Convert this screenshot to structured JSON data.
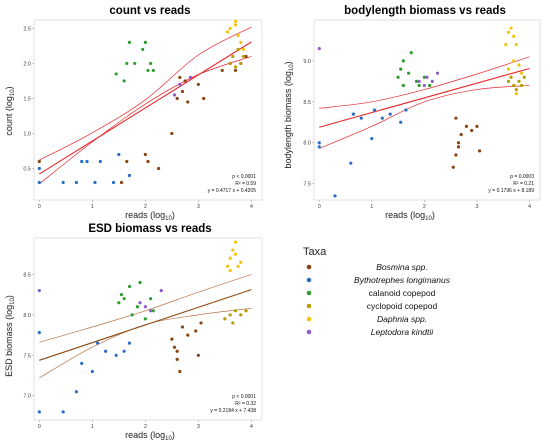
{
  "chart_data": [
    {
      "type": "scatter",
      "title": "count vs reads",
      "xlabel": "reads (log",
      "xlabel_sub": "10",
      "xlabel_end": ")",
      "ylabel": "count (log",
      "ylabel_sub": "10",
      "ylabel_end": ")",
      "xlim": [
        -0.1,
        4.2
      ],
      "ylim": [
        0.05,
        2.62
      ],
      "xticks": [
        0,
        1,
        2,
        3,
        4
      ],
      "yticks": [
        0.5,
        1.0,
        1.5,
        2.0,
        2.5
      ],
      "ytick_labels": [
        "0.5",
        "1.0",
        "1.5",
        "2.0",
        "2.5"
      ],
      "grid": false,
      "line_color": "#e8262b",
      "ci_color": "#e8262b",
      "fit": {
        "slope": 0.4717,
        "intercept": 0.4205
      },
      "ci_band": {
        "lower": [
          [
            0,
            0.28
          ],
          [
            1,
            0.88
          ],
          [
            2,
            1.42
          ],
          [
            3,
            1.84
          ],
          [
            4,
            2.1
          ]
        ],
        "upper": [
          [
            0,
            0.62
          ],
          [
            1,
            1.01
          ],
          [
            2,
            1.48
          ],
          [
            3,
            2.12
          ],
          [
            4,
            2.52
          ]
        ]
      },
      "stats": [
        "p < 0.0001",
        "R² = 0.59",
        "y = 0.4717 x + 0.4205"
      ],
      "series": [
        {
          "name": "Bosmina spp.",
          "points": [
            [
              0.0,
              0.6
            ],
            [
              1.55,
              0.3
            ],
            [
              1.65,
              0.6
            ],
            [
              2.0,
              0.7
            ],
            [
              2.05,
              0.6
            ],
            [
              2.25,
              0.5
            ],
            [
              2.5,
              1.0
            ],
            [
              2.6,
              1.5
            ],
            [
              2.65,
              1.8
            ],
            [
              2.7,
              1.6
            ],
            [
              2.75,
              1.75
            ],
            [
              3.0,
              1.7
            ],
            [
              3.45,
              1.9
            ],
            [
              3.6,
              2.0
            ],
            [
              3.7,
              1.9
            ],
            [
              3.8,
              2.0
            ],
            [
              3.9,
              2.1
            ],
            [
              2.8,
              1.45
            ],
            [
              3.1,
              1.5
            ]
          ]
        },
        {
          "name": "Bythotrephes longimanus",
          "points": [
            [
              0.0,
              0.3
            ],
            [
              0.0,
              0.5
            ],
            [
              0.45,
              0.3
            ],
            [
              0.7,
              0.3
            ],
            [
              0.8,
              0.6
            ],
            [
              0.9,
              0.6
            ],
            [
              1.05,
              0.3
            ],
            [
              1.15,
              0.6
            ],
            [
              1.4,
              0.3
            ],
            [
              1.5,
              0.7
            ],
            [
              1.7,
              0.4
            ]
          ]
        },
        {
          "name": "calanoid copepod",
          "points": [
            [
              1.45,
              1.85
            ],
            [
              1.6,
              1.75
            ],
            [
              1.65,
              2.0
            ],
            [
              1.7,
              2.3
            ],
            [
              1.8,
              2.0
            ],
            [
              1.95,
              2.2
            ],
            [
              2.0,
              2.3
            ],
            [
              2.05,
              1.9
            ],
            [
              2.1,
              2.0
            ],
            [
              2.15,
              1.9
            ]
          ]
        },
        {
          "name": "cyclopoid copepod",
          "points": [
            [
              3.6,
              2.0
            ],
            [
              3.65,
              2.1
            ],
            [
              3.7,
              1.95
            ],
            [
              3.75,
              2.2
            ],
            [
              3.8,
              2.0
            ],
            [
              3.85,
              2.1
            ]
          ]
        },
        {
          "name": "Daphnia spp.",
          "points": [
            [
              3.55,
              2.45
            ],
            [
              3.6,
              2.5
            ],
            [
              3.7,
              2.55
            ],
            [
              3.75,
              2.4
            ],
            [
              3.8,
              2.3
            ],
            [
              3.85,
              2.2
            ],
            [
              3.7,
              2.6
            ]
          ]
        },
        {
          "name": "Leptodora kindtii",
          "points": [
            [
              2.85,
              1.8
            ],
            [
              2.65,
              1.7
            ],
            [
              2.55,
              1.55
            ]
          ]
        }
      ]
    },
    {
      "type": "scatter",
      "title": "bodylength biomass vs reads",
      "xlabel": "reads (log",
      "xlabel_sub": "10",
      "xlabel_end": ")",
      "ylabel": "bodylength biomass (log",
      "ylabel_sub": "10",
      "ylabel_end": ")",
      "xlim": [
        -0.1,
        4.2
      ],
      "ylim": [
        7.3,
        9.5
      ],
      "xticks": [
        0,
        1,
        2,
        3,
        4
      ],
      "yticks": [
        7.5,
        8.0,
        8.5,
        9.0
      ],
      "ytick_labels": [
        "7.5",
        "8.0",
        "8.5",
        "9.0"
      ],
      "grid": false,
      "line_color": "#e8262b",
      "ci_color": "#e8262b",
      "fit": {
        "slope": 0.1796,
        "intercept": 8.189
      },
      "ci_band": {
        "lower": [
          [
            0,
            7.93
          ],
          [
            1,
            8.2
          ],
          [
            2,
            8.5
          ],
          [
            3,
            8.65
          ],
          [
            4,
            8.7
          ]
        ],
        "upper": [
          [
            0,
            8.42
          ],
          [
            1,
            8.5
          ],
          [
            2,
            8.65
          ],
          [
            3,
            8.84
          ],
          [
            4,
            9.05
          ]
        ]
      },
      "stats": [
        "p = 0.0003",
        "R² = 0.21",
        "y = 0.1796 x + 8.189"
      ],
      "series": [
        {
          "name": "Bosmina spp.",
          "points": [
            [
              2.55,
              7.7
            ],
            [
              2.6,
              7.85
            ],
            [
              2.65,
              8.0
            ],
            [
              2.7,
              8.1
            ],
            [
              2.8,
              8.2
            ],
            [
              2.9,
              8.15
            ],
            [
              3.0,
              8.2
            ],
            [
              2.6,
              8.3
            ],
            [
              3.05,
              7.9
            ],
            [
              2.65,
              7.95
            ]
          ]
        },
        {
          "name": "Bythotrephes longimanus",
          "points": [
            [
              0.0,
              8.0
            ],
            [
              0.0,
              7.95
            ],
            [
              0.6,
              7.75
            ],
            [
              0.65,
              8.35
            ],
            [
              0.8,
              8.3
            ],
            [
              1.0,
              8.05
            ],
            [
              1.05,
              8.4
            ],
            [
              1.2,
              8.3
            ],
            [
              1.35,
              8.35
            ],
            [
              1.55,
              8.25
            ],
            [
              1.65,
              8.4
            ],
            [
              0.3,
              7.35
            ]
          ]
        },
        {
          "name": "calanoid copepod",
          "points": [
            [
              1.5,
              8.8
            ],
            [
              1.55,
              8.9
            ],
            [
              1.6,
              9.0
            ],
            [
              1.7,
              8.85
            ],
            [
              1.75,
              9.1
            ],
            [
              1.85,
              8.75
            ],
            [
              1.9,
              8.7
            ],
            [
              2.0,
              8.8
            ],
            [
              2.1,
              8.7
            ],
            [
              1.6,
              8.7
            ]
          ]
        },
        {
          "name": "cyclopoid copepod",
          "points": [
            [
              3.6,
              8.75
            ],
            [
              3.65,
              8.8
            ],
            [
              3.7,
              8.7
            ],
            [
              3.8,
              8.75
            ],
            [
              3.9,
              8.8
            ],
            [
              3.75,
              8.65
            ],
            [
              3.85,
              8.7
            ]
          ]
        },
        {
          "name": "Daphnia spp.",
          "points": [
            [
              3.55,
              9.2
            ],
            [
              3.6,
              9.35
            ],
            [
              3.65,
              9.4
            ],
            [
              3.7,
              9.3
            ],
            [
              3.75,
              9.2
            ],
            [
              3.6,
              8.9
            ],
            [
              3.7,
              9.0
            ],
            [
              3.8,
              8.95
            ],
            [
              3.85,
              8.85
            ],
            [
              3.75,
              8.6
            ]
          ]
        },
        {
          "name": "Leptodora kindtii",
          "points": [
            [
              0.0,
              9.15
            ],
            [
              1.9,
              8.75
            ],
            [
              2.0,
              8.7
            ],
            [
              2.05,
              8.8
            ],
            [
              2.15,
              8.75
            ],
            [
              2.25,
              8.85
            ]
          ]
        }
      ]
    },
    {
      "type": "scatter",
      "title": "ESD biomass vs reads",
      "xlabel": "reads (log",
      "xlabel_sub": "10",
      "xlabel_end": ")",
      "ylabel": "ESD biomass (log",
      "ylabel_sub": "10",
      "ylabel_end": ")",
      "xlim": [
        -0.1,
        4.2
      ],
      "ylim": [
        6.7,
        8.95
      ],
      "xticks": [
        0,
        1,
        2,
        3,
        4
      ],
      "yticks": [
        7.0,
        7.5,
        8.0,
        8.5
      ],
      "ytick_labels": [
        "7.0",
        "7.5",
        "8.0",
        "8.5"
      ],
      "grid": false,
      "line_color": "#8b4a13",
      "ci_color": "#b8734a",
      "fit": {
        "slope": 0.2184,
        "intercept": 7.438
      },
      "ci_band": {
        "lower": [
          [
            0,
            7.22
          ],
          [
            1,
            7.6
          ],
          [
            2,
            7.88
          ],
          [
            3,
            8.0
          ],
          [
            4,
            8.08
          ]
        ],
        "upper": [
          [
            0,
            7.66
          ],
          [
            1,
            7.85
          ],
          [
            2,
            8.05
          ],
          [
            3,
            8.28
          ],
          [
            4,
            8.5
          ]
        ]
      },
      "stats": [
        "p < 0.0001",
        "R² = 0.32",
        "y = 0.2184 x + 7.438"
      ],
      "series": [
        {
          "name": "Bosmina spp.",
          "points": [
            [
              2.5,
              7.7
            ],
            [
              2.55,
              7.6
            ],
            [
              2.6,
              7.45
            ],
            [
              2.65,
              7.3
            ],
            [
              2.8,
              7.75
            ],
            [
              2.95,
              7.8
            ],
            [
              2.7,
              7.85
            ],
            [
              3.0,
              7.5
            ],
            [
              3.05,
              7.9
            ],
            [
              2.6,
              7.55
            ]
          ]
        },
        {
          "name": "Bythotrephes longimanus",
          "points": [
            [
              0.0,
              7.78
            ],
            [
              0.0,
              6.8
            ],
            [
              0.45,
              6.8
            ],
            [
              0.7,
              7.05
            ],
            [
              0.8,
              7.4
            ],
            [
              1.0,
              7.3
            ],
            [
              1.1,
              7.65
            ],
            [
              1.25,
              7.55
            ],
            [
              1.45,
              7.5
            ],
            [
              1.6,
              7.55
            ],
            [
              1.7,
              7.65
            ]
          ]
        },
        {
          "name": "calanoid copepod",
          "points": [
            [
              1.5,
              8.15
            ],
            [
              1.55,
              8.25
            ],
            [
              1.6,
              8.2
            ],
            [
              1.7,
              8.35
            ],
            [
              1.75,
              8.0
            ],
            [
              1.85,
              8.1
            ],
            [
              1.9,
              8.4
            ],
            [
              2.0,
              7.95
            ],
            [
              2.1,
              8.2
            ],
            [
              2.15,
              8.05
            ]
          ]
        },
        {
          "name": "cyclopoid copepod",
          "points": [
            [
              3.5,
              7.95
            ],
            [
              3.6,
              8.0
            ],
            [
              3.7,
              8.05
            ],
            [
              3.8,
              8.0
            ],
            [
              3.9,
              8.05
            ],
            [
              3.65,
              7.9
            ]
          ]
        },
        {
          "name": "Daphnia spp.",
          "points": [
            [
              3.55,
              8.6
            ],
            [
              3.6,
              8.7
            ],
            [
              3.65,
              8.8
            ],
            [
              3.7,
              8.75
            ],
            [
              3.75,
              8.6
            ],
            [
              3.8,
              8.65
            ],
            [
              3.7,
              8.9
            ],
            [
              3.6,
              8.55
            ]
          ]
        },
        {
          "name": "Leptodora kindtii",
          "points": [
            [
              0.0,
              8.3
            ],
            [
              1.9,
              8.15
            ],
            [
              2.0,
              8.1
            ],
            [
              2.1,
              8.05
            ],
            [
              2.3,
              8.3
            ]
          ]
        }
      ]
    }
  ],
  "legend": {
    "title": "Taxa",
    "items": [
      {
        "label": "Bosmina spp.",
        "color": "#8b4513",
        "italic": true
      },
      {
        "label": "Bythotrephes longimanus",
        "color": "#2a6fc4",
        "italic": true
      },
      {
        "label": "calanoid copepod",
        "color": "#2e9e2e",
        "italic": false
      },
      {
        "label": "cyclopoid copepod",
        "color": "#b99a00",
        "italic": false
      },
      {
        "label": "Daphnia spp.",
        "color": "#f2c40c",
        "italic": true
      },
      {
        "label": "Leptodora kindtii",
        "color": "#8e5cc8",
        "italic": true
      }
    ]
  }
}
